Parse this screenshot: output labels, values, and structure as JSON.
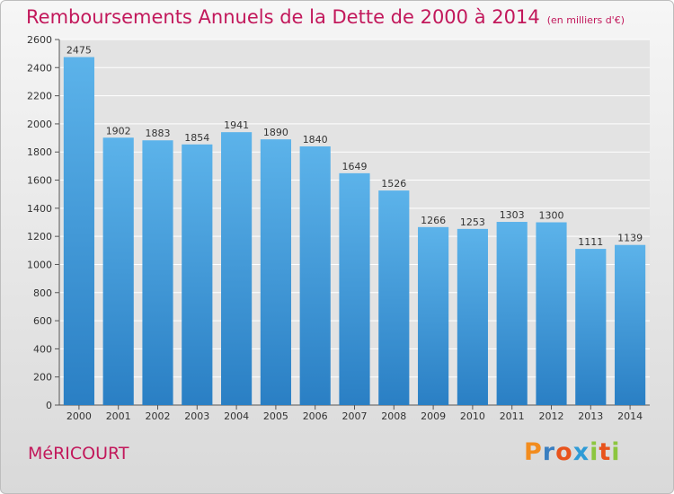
{
  "title": "Remboursements Annuels de la Dette de 2000 à 2014",
  "unit_note": "(en milliers d'€)",
  "town": "MéRICOURT",
  "logo_text": "Proxiti",
  "colors": {
    "title": "#c2185b",
    "bar_top": "#5cb3ea",
    "bar_bottom": "#2a7fc4",
    "plot_bg": "#e3e3e3",
    "grid": "#ffffff"
  },
  "chart_data": {
    "type": "bar",
    "title": "Remboursements Annuels de la Dette de 2000 à 2014",
    "subtitle": "(en milliers d'€)",
    "categories": [
      "2000",
      "2001",
      "2002",
      "2003",
      "2004",
      "2005",
      "2006",
      "2007",
      "2008",
      "2009",
      "2010",
      "2011",
      "2012",
      "2013",
      "2014"
    ],
    "values": [
      2475,
      1902,
      1883,
      1854,
      1941,
      1890,
      1840,
      1649,
      1526,
      1266,
      1253,
      1303,
      1300,
      1111,
      1139
    ],
    "data_labels": [
      "2475",
      "1902",
      "1883",
      "1854",
      "1941",
      "1890",
      "1840",
      "1649",
      "1526",
      "1266",
      "1253",
      "1303",
      "1300",
      "1111",
      "1139"
    ],
    "ylim": [
      0,
      2600
    ],
    "yticks": [
      0,
      200,
      400,
      600,
      800,
      1000,
      1200,
      1400,
      1600,
      1800,
      2000,
      2200,
      2400,
      2600
    ],
    "grid": true,
    "legend": "none"
  }
}
